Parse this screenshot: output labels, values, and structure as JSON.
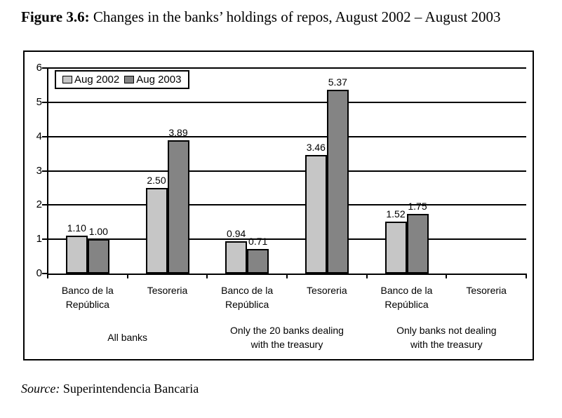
{
  "figure": {
    "title_prefix": "Figure 3.6:",
    "title_rest": " Changes in the banks’ holdings of repos, August 2002 – August 2003"
  },
  "source": {
    "prefix": "Source:",
    "rest": " Superintendencia Bancaria"
  },
  "chart_data": {
    "type": "bar",
    "title": "Figure 3.6: Changes in the banks’ holdings of repos, August 2002 – August 2003",
    "xlabel": "",
    "ylabel": "",
    "ylim": [
      0,
      6
    ],
    "yticks": [
      0,
      1,
      2,
      3,
      4,
      5,
      6
    ],
    "grid": true,
    "legend_position": "top-left",
    "axis_color": "#000000",
    "categories": [
      {
        "lines": [
          "Banco de la",
          "República"
        ]
      },
      {
        "lines": [
          "Tesoreria"
        ]
      },
      {
        "lines": [
          "Banco de la",
          "República"
        ]
      },
      {
        "lines": [
          "Tesoreria"
        ]
      },
      {
        "lines": [
          "Banco de la",
          "República"
        ]
      },
      {
        "lines": [
          "Tesoreria"
        ]
      }
    ],
    "groups": [
      {
        "lines": [
          "All banks"
        ],
        "span": 2
      },
      {
        "lines": [
          "Only the 20 banks dealing",
          "with the treasury"
        ],
        "span": 2
      },
      {
        "lines": [
          "Only banks not dealing",
          "with the treasury"
        ],
        "span": 2
      }
    ],
    "series": [
      {
        "name": "Aug 2002",
        "color": "#c6c6c6",
        "values": [
          1.1,
          2.5,
          0.94,
          3.46,
          1.52,
          null
        ],
        "labels": [
          "1.10",
          "2.50",
          "0.94",
          "3.46",
          "1.52",
          ""
        ]
      },
      {
        "name": "Aug 2003",
        "color": "#848484",
        "values": [
          1.0,
          3.89,
          0.71,
          5.37,
          1.75,
          null
        ],
        "labels": [
          "1.00",
          "3.89",
          "0.71",
          "5.37",
          "1.75",
          ""
        ]
      }
    ]
  }
}
